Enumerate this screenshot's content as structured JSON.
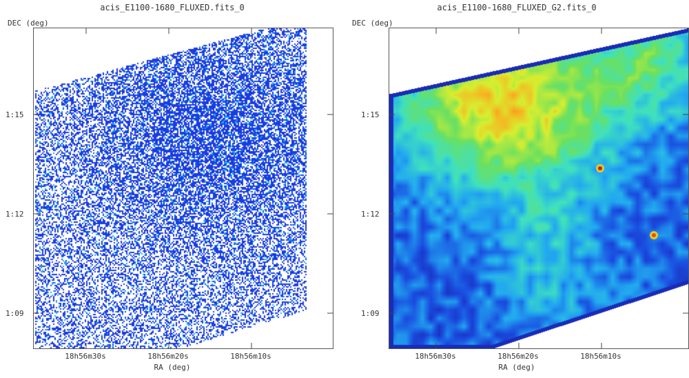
{
  "panels": [
    {
      "title": "acis_E1100-1680_FLUXED.fits_0",
      "ylabel": "DEC (deg)",
      "xlabel": "RA (deg)",
      "yticks": [
        "1:15",
        "1:12",
        "1:09"
      ],
      "xticks": [
        "18h56m30s",
        "18h56m20s",
        "18h56m10s"
      ]
    },
    {
      "title": "acis_E1100-1680_FLUXED_G2.fits_0",
      "ylabel": "DEC (deg)",
      "xlabel": "RA (deg)",
      "yticks": [
        "1:15",
        "1:12",
        "1:09"
      ],
      "xticks": [
        "18h56m30s",
        "18h56m20s",
        "18h56m10s"
      ]
    }
  ],
  "colors": {
    "left_pixels": "#1a3ce0",
    "left_pixels_bright": "#1fa8f0",
    "colormap": [
      "#1a1aa0",
      "#1a4ee0",
      "#22a8f0",
      "#3fe0c0",
      "#6be060",
      "#d8ee30",
      "#f8b020",
      "#f07020"
    ]
  }
}
